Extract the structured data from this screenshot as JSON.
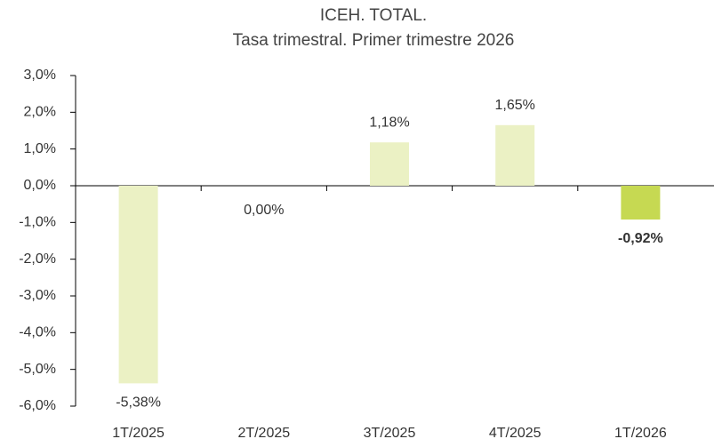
{
  "chart_data": {
    "type": "bar",
    "title": "ICEH. TOTAL.",
    "subtitle": "Tasa trimestral. Primer trimestre 2026",
    "categories": [
      "1T/2025",
      "2T/2025",
      "3T/2025",
      "4T/2025",
      "1T/2026"
    ],
    "values": [
      -5.38,
      0,
      1.18,
      1.65,
      -0.92
    ],
    "value_labels": [
      "-5,38%",
      "0,00%",
      "1,18%",
      "1,65%",
      "-0,92%"
    ],
    "colors": [
      "#ebf1c4",
      "#ebf1c4",
      "#ebf1c4",
      "#ebf1c4",
      "#c6d952"
    ],
    "bold_labels": [
      false,
      false,
      false,
      false,
      true
    ],
    "ylim": [
      -6,
      3
    ],
    "yticks": [
      {
        "value": 3,
        "label": "3,0%"
      },
      {
        "value": 2,
        "label": "2,0%"
      },
      {
        "value": 1,
        "label": "1,0%"
      },
      {
        "value": 0,
        "label": "0,0%"
      },
      {
        "value": -1,
        "label": "-1,0%"
      },
      {
        "value": -2,
        "label": "-2,0%"
      },
      {
        "value": -3,
        "label": "-3,0%"
      },
      {
        "value": -4,
        "label": "-4,0%"
      },
      {
        "value": -5,
        "label": "-5,0%"
      },
      {
        "value": -6,
        "label": "-6,0%"
      }
    ],
    "grid": false
  }
}
